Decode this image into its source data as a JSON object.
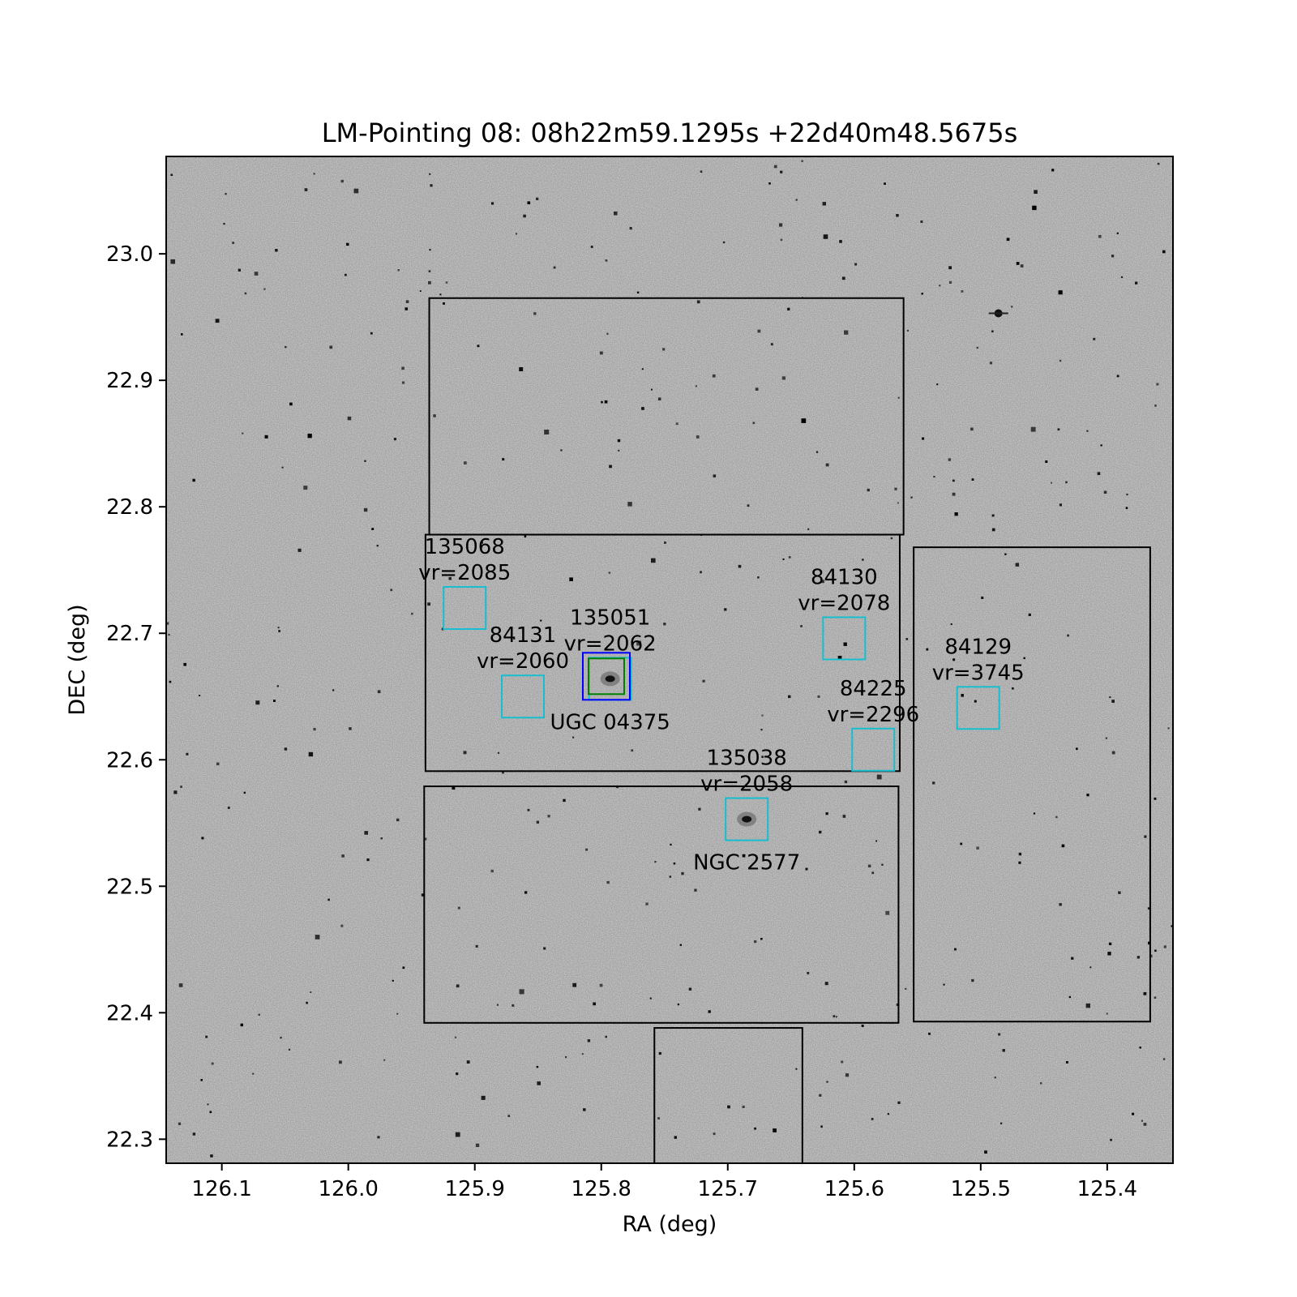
{
  "chart_data": {
    "type": "scatter",
    "title": "LM-Pointing 08: 08h22m59.1295s +22d40m48.5675s",
    "xlabel": "RA (deg)",
    "ylabel": "DEC (deg)",
    "xlim": [
      126.144,
      125.348
    ],
    "ylim": [
      22.281,
      23.077
    ],
    "x_ticks": [
      "126.1",
      "126.0",
      "125.9",
      "125.8",
      "125.7",
      "125.6",
      "125.5",
      "125.4"
    ],
    "x_tick_values": [
      126.1,
      126.0,
      125.9,
      125.8,
      125.7,
      125.6,
      125.5,
      125.4
    ],
    "y_ticks": [
      "23.0",
      "22.9",
      "22.8",
      "22.7",
      "22.6",
      "22.5",
      "22.4",
      "22.3"
    ],
    "y_tick_values": [
      23.0,
      22.9,
      22.8,
      22.7,
      22.6,
      22.5,
      22.4,
      22.3
    ],
    "grid": false,
    "background": "grayscale sky image with point sources",
    "colors": {
      "footprint": "#000000",
      "source_box": "#17becf",
      "target_outer": "#0000ff",
      "target_inner": "#008000",
      "sky": "#d6d6d6"
    },
    "footprints": [
      {
        "ra_min": 125.561,
        "ra_max": 125.936,
        "dec_min": 22.778,
        "dec_max": 22.965
      },
      {
        "ra_min": 125.564,
        "ra_max": 125.939,
        "dec_min": 22.591,
        "dec_max": 22.778
      },
      {
        "ra_min": 125.565,
        "ra_max": 125.94,
        "dec_min": 22.392,
        "dec_max": 22.579
      },
      {
        "ra_min": 125.366,
        "ra_max": 125.553,
        "dec_min": 22.393,
        "dec_max": 22.768
      },
      {
        "ra_min": 125.641,
        "ra_max": 125.758,
        "dec_min": 22.281,
        "dec_max": 22.388
      }
    ],
    "sources": [
      {
        "id": "135068",
        "vr": "vr=2085",
        "ra": 125.908,
        "dec": 22.72
      },
      {
        "id": "84131",
        "vr": "vr=2060",
        "ra": 125.862,
        "dec": 22.65
      },
      {
        "id": "135051",
        "vr": "vr=2062",
        "ra": 125.793,
        "dec": 22.664
      },
      {
        "id": "84130",
        "vr": "vr=2078",
        "ra": 125.608,
        "dec": 22.696
      },
      {
        "id": "84225",
        "vr": "vr=2296",
        "ra": 125.585,
        "dec": 22.608
      },
      {
        "id": "84129",
        "vr": "vr=3745",
        "ra": 125.502,
        "dec": 22.641
      },
      {
        "id": "135038",
        "vr": "vr=2058",
        "ra": 125.685,
        "dec": 22.553
      }
    ],
    "named_galaxies": [
      {
        "name": "UGC 04375",
        "ra": 125.793,
        "dec": 22.664
      },
      {
        "name": "NGC 2577",
        "ra": 125.685,
        "dec": 22.553
      }
    ],
    "target": {
      "ra": 125.796,
      "dec": 22.666
    }
  }
}
